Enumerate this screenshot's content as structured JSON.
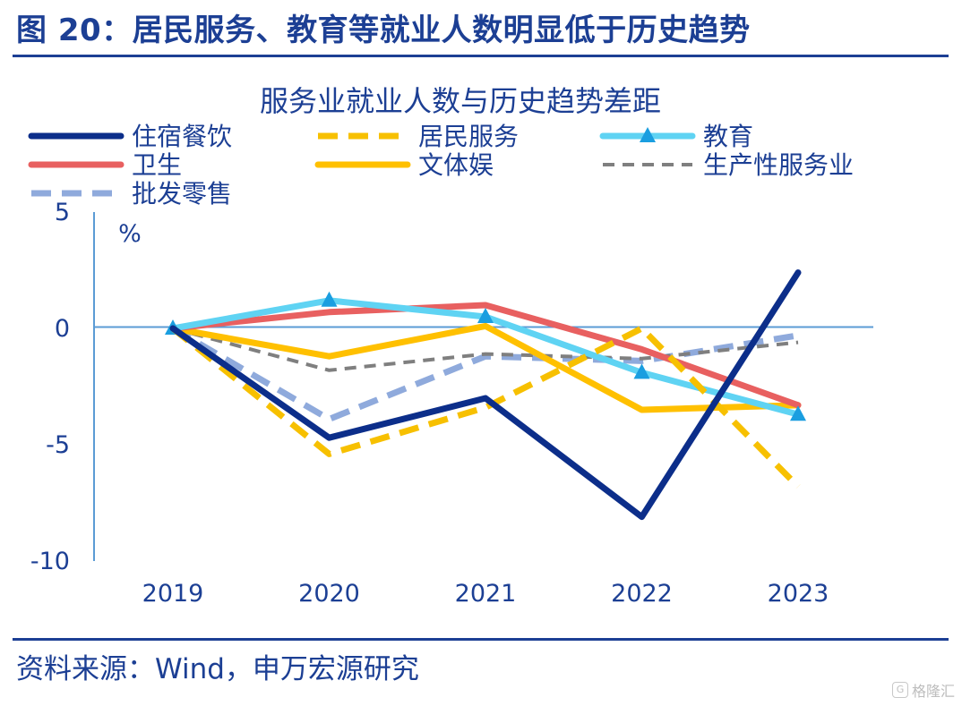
{
  "figure": {
    "title": "图 20：居民服务、教育等就业人数明显低于历史趋势",
    "source": "资料来源：Wind，申万宏源研究",
    "watermark": "格隆汇",
    "watermark_badge": "G"
  },
  "chart_data": {
    "type": "line",
    "title": "服务业就业人数与历史趋势差距",
    "ylabel": "%",
    "xlabel": "",
    "x": [
      "2019",
      "2020",
      "2021",
      "2022",
      "2023"
    ],
    "ylim": [
      -10,
      5
    ],
    "yticks": [
      5,
      0,
      -5,
      -10
    ],
    "ytick_labels": [
      "5",
      "0",
      "-5",
      "-10"
    ],
    "grid": false,
    "legend_position": "top",
    "series": [
      {
        "name": "住宿餐饮",
        "values": [
          0,
          -4.7,
          -3.0,
          -8.1,
          2.4
        ],
        "color": "#0c2e8a",
        "style": "solid",
        "marker": "none"
      },
      {
        "name": "居民服务",
        "values": [
          0,
          -5.4,
          -3.4,
          0,
          -6.8
        ],
        "color": "#f7c000",
        "style": "dashed",
        "marker": "none"
      },
      {
        "name": "教育",
        "values": [
          0,
          1.2,
          0.5,
          -1.9,
          -3.7
        ],
        "color": "#5fd3f3",
        "style": "solid",
        "marker": "triangle",
        "marker_color": "#1a9ee0"
      },
      {
        "name": "卫生",
        "values": [
          0,
          0.7,
          1.0,
          -0.9,
          -3.3
        ],
        "color": "#e86060",
        "style": "solid",
        "marker": "none"
      },
      {
        "name": "文体娱",
        "values": [
          0,
          -1.2,
          0.1,
          -3.5,
          -3.3
        ],
        "color": "#ffc000",
        "style": "solid",
        "marker": "none"
      },
      {
        "name": "生产性服务业",
        "values": [
          0,
          -1.8,
          -1.1,
          -1.3,
          -0.6
        ],
        "color": "#7f7f7f",
        "style": "dashed-thin",
        "marker": "none"
      },
      {
        "name": "批发零售",
        "values": [
          0,
          -3.9,
          -1.2,
          -1.4,
          -0.3
        ],
        "color": "#8faadc",
        "style": "dashed",
        "marker": "none"
      }
    ]
  }
}
